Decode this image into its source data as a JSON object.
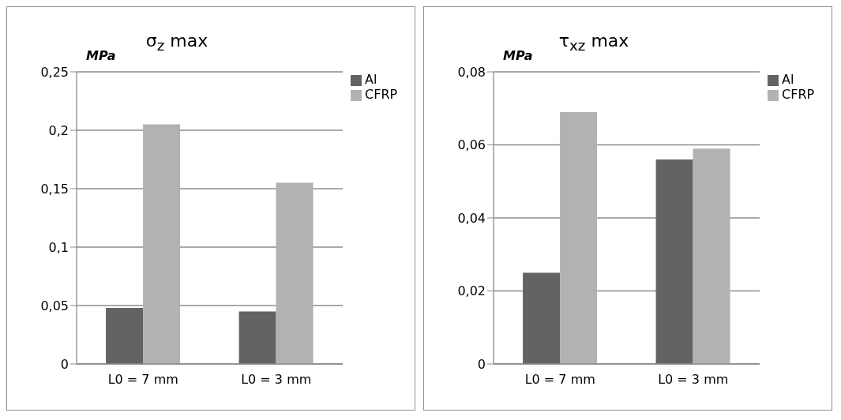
{
  "chart_data": [
    {
      "type": "bar",
      "title": "σ$_{z}$ max",
      "ylabel": "MPa",
      "categories": [
        "L0 = 7 mm",
        "L0 = 3 mm"
      ],
      "series": [
        {
          "name": "Al",
          "color": "#636363",
          "values": [
            0.048,
            0.045
          ]
        },
        {
          "name": "CFRP",
          "color": "#b2b2b2",
          "values": [
            0.205,
            0.155
          ]
        }
      ],
      "ylim": [
        0,
        0.25
      ],
      "yticks": [
        0,
        {
          "value": 0.05,
          "label": "0,05"
        },
        {
          "value": 0.1,
          "label": "0,1"
        },
        {
          "value": 0.15,
          "label": "0,15"
        },
        {
          "value": 0.2,
          "label": "0,2"
        },
        {
          "value": 0.25,
          "label": "0,25"
        }
      ],
      "grid": "y",
      "legend": "top right"
    },
    {
      "type": "bar",
      "title": "τ$_{xz}$ max",
      "ylabel": "MPa",
      "categories": [
        "L0 = 7 mm",
        "L0 = 3 mm"
      ],
      "series": [
        {
          "name": "Al",
          "color": "#636363",
          "values": [
            0.025,
            0.056
          ]
        },
        {
          "name": "CFRP",
          "color": "#b2b2b2",
          "values": [
            0.069,
            0.059
          ]
        }
      ],
      "ylim": [
        0,
        0.08
      ],
      "yticks": [
        0,
        {
          "value": 0.02,
          "label": "0,02"
        },
        {
          "value": 0.04,
          "label": "0,04"
        },
        {
          "value": 0.06,
          "label": "0,06"
        },
        {
          "value": 0.08,
          "label": "0,08"
        }
      ],
      "grid": "y",
      "legend": "top right"
    }
  ]
}
